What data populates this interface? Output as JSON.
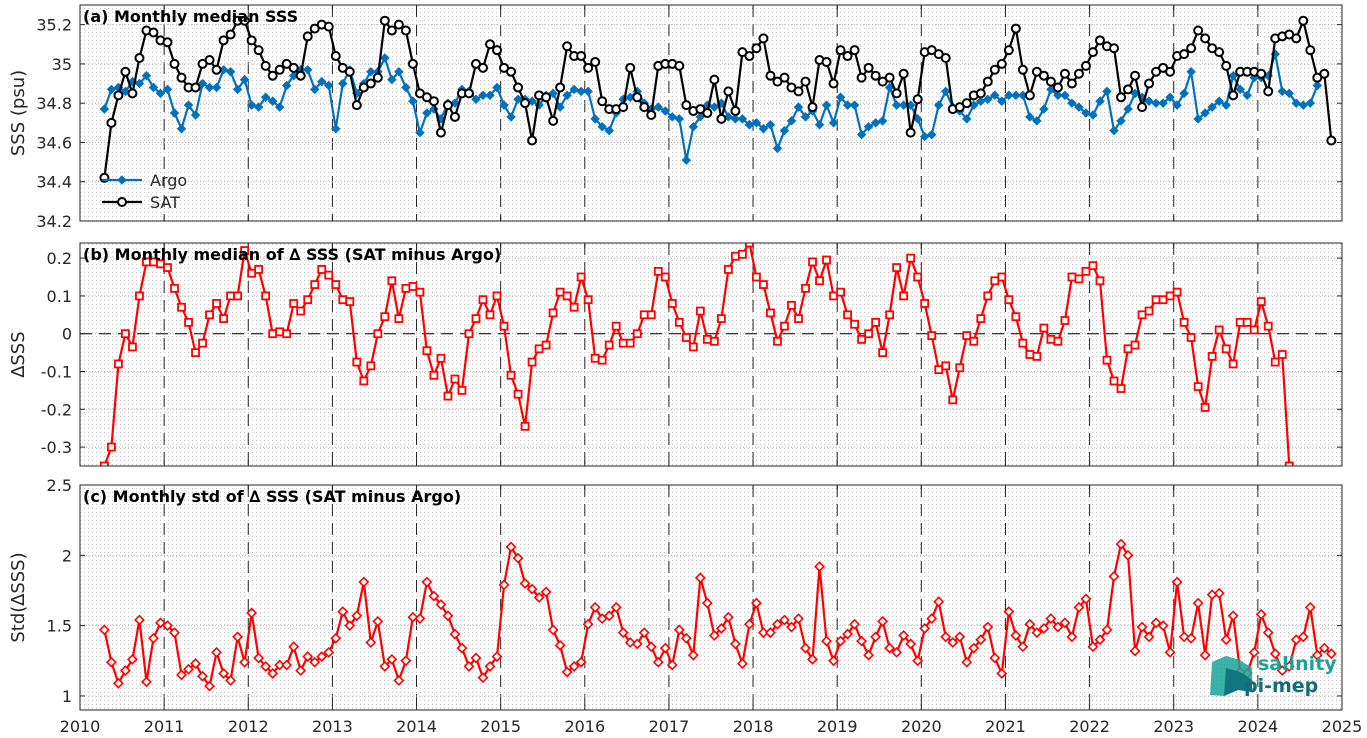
{
  "colors": {
    "argo": "#0072BD",
    "sat": "#000000",
    "diff": "#FF0000",
    "logo_light": "#1aa39b",
    "logo_dark": "#0e6f7a"
  },
  "logo": {
    "line1": "salinity",
    "line2": "pi-mep"
  },
  "chart_data": [
    {
      "type": "line",
      "title": "(a) Monthly median SSS",
      "ylabel": "SSS (psu)",
      "xlabel": "",
      "xlim": [
        2010,
        2025
      ],
      "ylim": [
        34.2,
        35.3
      ],
      "grid": true,
      "legend_position": "bottom-left",
      "xticks": [
        "2010",
        "2011",
        "2012",
        "2013",
        "2014",
        "2015",
        "2016",
        "2017",
        "2018",
        "2019",
        "2020",
        "2021",
        "2022",
        "2023",
        "2024",
        "2025"
      ],
      "yticks": [
        "34.2",
        "34.4",
        "34.6",
        "34.8",
        "35",
        "35.2"
      ],
      "x_start": 2010.29,
      "x_step_months": 1,
      "series": [
        {
          "name": "Argo",
          "marker": "diamond",
          "values": [
            34.77,
            34.87,
            34.88,
            34.86,
            34.91,
            34.9,
            34.94,
            34.88,
            34.85,
            34.87,
            34.75,
            34.67,
            34.79,
            34.74,
            34.9,
            34.88,
            34.88,
            34.97,
            34.96,
            34.87,
            34.92,
            34.79,
            34.78,
            34.83,
            34.81,
            34.78,
            34.89,
            34.94,
            34.97,
            34.97,
            34.87,
            34.91,
            34.89,
            34.67,
            34.9,
            34.97,
            34.85,
            34.9,
            34.96,
            34.96,
            35.03,
            34.92,
            34.96,
            34.88,
            34.81,
            34.65,
            34.75,
            34.77,
            34.72,
            34.8,
            34.8,
            34.87,
            34.86,
            34.82,
            34.84,
            34.84,
            34.88,
            34.79,
            34.73,
            34.82,
            34.82,
            34.81,
            34.79,
            34.84,
            34.85,
            34.78,
            34.84,
            34.87,
            34.86,
            34.86,
            34.72,
            34.68,
            34.66,
            34.75,
            34.82,
            34.83,
            34.86,
            34.8,
            34.77,
            34.78,
            34.76,
            34.73,
            34.72,
            34.51,
            34.68,
            34.73,
            34.79,
            34.78,
            34.8,
            34.73,
            34.72,
            34.72,
            34.69,
            34.7,
            34.67,
            34.69,
            34.57,
            34.66,
            34.71,
            34.78,
            34.73,
            34.76,
            34.69,
            34.79,
            34.7,
            34.83,
            34.79,
            34.79,
            34.64,
            34.68,
            34.7,
            34.71,
            34.88,
            34.79,
            34.79,
            34.79,
            34.72,
            34.63,
            34.64,
            34.79,
            34.86,
            34.78,
            34.76,
            34.72,
            34.79,
            34.81,
            34.82,
            34.84,
            34.81,
            34.84,
            34.84,
            34.84,
            34.73,
            34.71,
            34.77,
            34.87,
            34.84,
            34.84,
            34.8,
            34.78,
            34.75,
            34.74,
            34.81,
            34.86,
            34.66,
            34.71,
            34.77,
            34.85,
            34.83,
            34.81,
            34.8,
            34.8,
            34.83,
            34.79,
            34.85,
            34.96,
            34.72,
            34.75,
            34.78,
            34.81,
            34.79,
            34.94,
            34.87,
            34.84,
            34.93,
            34.93,
            34.94,
            35.05,
            34.86,
            34.85,
            34.8,
            34.79,
            34.8,
            34.89
          ]
        },
        {
          "name": "SAT",
          "marker": "circle",
          "values": [
            34.42,
            34.7,
            34.84,
            34.96,
            34.85,
            35.03,
            35.17,
            35.16,
            35.12,
            35.11,
            35.0,
            34.93,
            34.88,
            34.88,
            35.0,
            35.02,
            34.97,
            35.12,
            35.15,
            35.22,
            35.22,
            35.12,
            35.07,
            34.99,
            34.94,
            34.97,
            35.0,
            34.98,
            34.94,
            35.14,
            35.18,
            35.2,
            35.19,
            35.04,
            34.98,
            34.96,
            34.79,
            34.88,
            34.9,
            34.93,
            35.22,
            35.17,
            35.2,
            35.17,
            35.0,
            34.85,
            34.83,
            34.81,
            34.65,
            34.79,
            34.73,
            34.85,
            34.85,
            35.0,
            34.98,
            35.1,
            35.07,
            34.98,
            34.96,
            34.88,
            34.8,
            34.61,
            34.84,
            34.83,
            34.71,
            34.88,
            35.09,
            35.04,
            35.04,
            34.98,
            35.01,
            34.81,
            34.77,
            34.77,
            34.78,
            34.98,
            34.83,
            34.78,
            34.74,
            34.99,
            35.0,
            35.0,
            34.99,
            34.79,
            34.76,
            34.77,
            34.75,
            34.92,
            34.72,
            34.86,
            34.76,
            35.06,
            35.04,
            35.08,
            35.13,
            34.94,
            34.91,
            34.93,
            34.88,
            34.86,
            34.91,
            34.78,
            35.02,
            35.01,
            34.9,
            35.07,
            35.04,
            35.07,
            34.93,
            34.98,
            34.94,
            34.91,
            34.93,
            34.85,
            34.95,
            34.65,
            34.82,
            35.06,
            35.07,
            35.05,
            35.03,
            34.77,
            34.78,
            34.8,
            34.84,
            34.85,
            34.91,
            34.97,
            35.0,
            35.07,
            35.18,
            34.97,
            34.84,
            34.96,
            34.94,
            34.91,
            34.88,
            34.95,
            34.9,
            34.95,
            34.99,
            35.06,
            35.12,
            35.09,
            35.08,
            34.83,
            34.87,
            34.94,
            34.78,
            34.9,
            34.96,
            34.98,
            34.96,
            35.04,
            35.05,
            35.08,
            35.17,
            35.13,
            35.08,
            35.06,
            34.99,
            34.84,
            34.96,
            34.96,
            34.96,
            34.95,
            34.86,
            35.13,
            35.14,
            35.15,
            35.13,
            35.22,
            35.07,
            34.93,
            34.95,
            34.61
          ]
        }
      ]
    },
    {
      "type": "line",
      "title": "(b) Monthly median of ∆ SSS (SAT minus Argo)",
      "ylabel": "∆SSS",
      "xlabel": "",
      "xlim": [
        2010,
        2025
      ],
      "ylim": [
        -0.35,
        0.24
      ],
      "grid": true,
      "zero_line": true,
      "xticks": [
        "2010",
        "2011",
        "2012",
        "2013",
        "2014",
        "2015",
        "2016",
        "2017",
        "2018",
        "2019",
        "2020",
        "2021",
        "2022",
        "2023",
        "2024",
        "2025"
      ],
      "yticks": [
        "-0.3",
        "-0.2",
        "-0.1",
        "0",
        "0.1",
        "0.2"
      ],
      "x_start": 2010.29,
      "x_step_months": 1,
      "series": [
        {
          "name": "",
          "marker": "square",
          "values": [
            -0.35,
            -0.3,
            -0.08,
            0.0,
            -0.035,
            0.1,
            0.19,
            0.19,
            0.185,
            0.175,
            0.12,
            0.07,
            0.03,
            -0.05,
            -0.025,
            0.05,
            0.08,
            0.04,
            0.1,
            0.1,
            0.22,
            0.16,
            0.17,
            0.1,
            0.0,
            0.005,
            0.0,
            0.08,
            0.06,
            0.09,
            0.13,
            0.17,
            0.155,
            0.13,
            0.09,
            0.085,
            -0.075,
            -0.125,
            -0.085,
            0.0,
            0.045,
            0.14,
            0.04,
            0.12,
            0.125,
            0.11,
            -0.045,
            -0.11,
            -0.065,
            -0.165,
            -0.12,
            -0.15,
            0.0,
            0.04,
            0.09,
            0.05,
            0.1,
            0.02,
            -0.11,
            -0.16,
            -0.245,
            -0.075,
            -0.04,
            -0.03,
            0.055,
            0.11,
            0.1,
            0.07,
            0.15,
            0.09,
            -0.065,
            -0.07,
            -0.03,
            0.02,
            -0.025,
            -0.025,
            0.0,
            0.05,
            0.05,
            0.165,
            0.15,
            0.08,
            0.03,
            -0.01,
            -0.035,
            0.06,
            -0.015,
            -0.02,
            0.04,
            0.17,
            0.205,
            0.21,
            0.24,
            0.15,
            0.13,
            0.055,
            -0.02,
            0.02,
            0.075,
            0.04,
            0.12,
            0.19,
            0.14,
            0.195,
            0.1,
            0.11,
            0.05,
            0.025,
            -0.015,
            0.0,
            0.03,
            -0.05,
            0.05,
            0.175,
            0.1,
            0.2,
            0.15,
            0.08,
            -0.005,
            -0.095,
            -0.085,
            -0.175,
            -0.09,
            -0.005,
            -0.02,
            0.04,
            0.1,
            0.14,
            0.15,
            0.09,
            0.045,
            -0.025,
            -0.055,
            -0.06,
            0.015,
            -0.015,
            -0.02,
            0.035,
            0.15,
            0.145,
            0.165,
            0.18,
            0.14,
            -0.07,
            -0.125,
            -0.145,
            -0.04,
            -0.03,
            0.05,
            0.06,
            0.09,
            0.09,
            0.1,
            0.11,
            0.03,
            -0.01,
            -0.14,
            -0.195,
            -0.06,
            0.01,
            -0.04,
            -0.08,
            0.03,
            0.03,
            0.01,
            0.085,
            0.02,
            -0.075,
            -0.055,
            -0.35
          ]
        }
      ]
    },
    {
      "type": "line",
      "title": "(c) Monthly std of ∆ SSS (SAT minus Argo)",
      "ylabel": "Std(∆SSS)",
      "xlabel": "",
      "xlim": [
        2010,
        2025
      ],
      "ylim": [
        0.9,
        2.5
      ],
      "grid": true,
      "xticks": [
        "2010",
        "2011",
        "2012",
        "2013",
        "2014",
        "2015",
        "2016",
        "2017",
        "2018",
        "2019",
        "2020",
        "2021",
        "2022",
        "2023",
        "2024",
        "2025"
      ],
      "yticks": [
        "1",
        "1.5",
        "2",
        "2.5"
      ],
      "x_start": 2010.29,
      "x_step_months": 1,
      "series": [
        {
          "name": "",
          "marker": "diamond",
          "values": [
            1.47,
            1.24,
            1.09,
            1.18,
            1.26,
            1.54,
            1.1,
            1.41,
            1.52,
            1.5,
            1.45,
            1.15,
            1.19,
            1.23,
            1.14,
            1.07,
            1.31,
            1.16,
            1.11,
            1.42,
            1.24,
            1.59,
            1.27,
            1.21,
            1.16,
            1.22,
            1.22,
            1.35,
            1.18,
            1.28,
            1.24,
            1.28,
            1.31,
            1.41,
            1.6,
            1.5,
            1.57,
            1.81,
            1.38,
            1.53,
            1.21,
            1.26,
            1.11,
            1.25,
            1.56,
            1.55,
            1.81,
            1.71,
            1.65,
            1.57,
            1.44,
            1.34,
            1.21,
            1.27,
            1.13,
            1.21,
            1.28,
            1.79,
            2.06,
            1.98,
            1.8,
            1.76,
            1.7,
            1.74,
            1.47,
            1.36,
            1.17,
            1.21,
            1.24,
            1.51,
            1.63,
            1.55,
            1.57,
            1.63,
            1.45,
            1.38,
            1.37,
            1.45,
            1.35,
            1.24,
            1.34,
            1.22,
            1.47,
            1.41,
            1.29,
            1.84,
            1.66,
            1.43,
            1.48,
            1.56,
            1.37,
            1.23,
            1.51,
            1.66,
            1.45,
            1.45,
            1.51,
            1.54,
            1.49,
            1.55,
            1.34,
            1.26,
            1.92,
            1.39,
            1.25,
            1.39,
            1.44,
            1.51,
            1.39,
            1.29,
            1.42,
            1.53,
            1.34,
            1.31,
            1.43,
            1.37,
            1.25,
            1.48,
            1.55,
            1.67,
            1.42,
            1.38,
            1.42,
            1.24,
            1.34,
            1.4,
            1.49,
            1.27,
            1.16,
            1.6,
            1.43,
            1.35,
            1.51,
            1.45,
            1.48,
            1.55,
            1.49,
            1.52,
            1.42,
            1.63,
            1.69,
            1.35,
            1.4,
            1.47,
            1.85,
            2.08,
            2.0,
            1.32,
            1.49,
            1.42,
            1.52,
            1.5,
            1.31,
            1.81,
            1.42,
            1.41,
            1.66,
            1.29,
            1.72,
            1.73,
            1.4,
            1.57,
            1.17,
            1.16,
            1.31,
            1.58,
            1.45,
            1.3,
            1.18,
            1.21,
            1.4,
            1.42,
            1.63,
            1.29,
            1.34,
            1.3
          ]
        }
      ]
    }
  ]
}
